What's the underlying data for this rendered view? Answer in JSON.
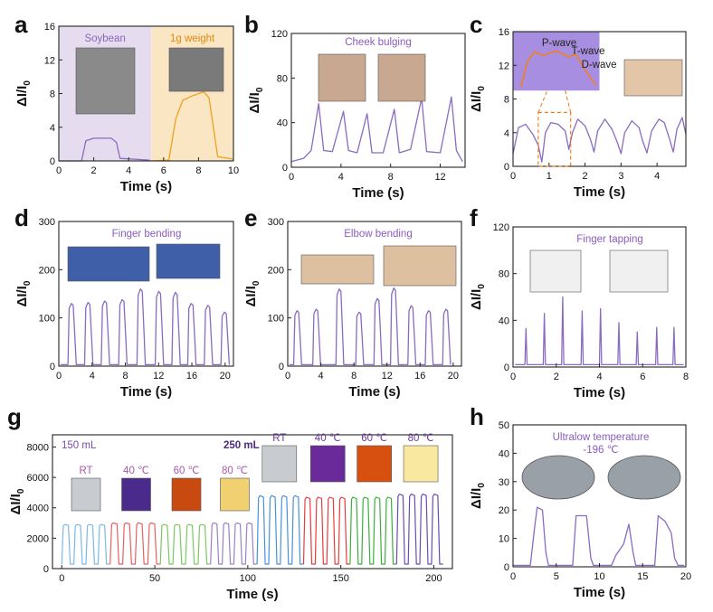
{
  "panel_labels": [
    "a",
    "b",
    "c",
    "d",
    "e",
    "f",
    "g",
    "h"
  ],
  "chart_data": [
    {
      "panel": "a",
      "type": "line",
      "xlabel": "Time (s)",
      "ylabel": "ΔI/I0",
      "xlim": [
        0,
        10
      ],
      "ylim": [
        0,
        16
      ],
      "xticks": [
        0,
        2,
        4,
        6,
        8,
        10
      ],
      "yticks": [
        0,
        4,
        8,
        12,
        16
      ],
      "regions": [
        {
          "label": "Soybean",
          "x": [
            0,
            5.3
          ],
          "color": "#e6dcf0",
          "text_color": "#8a66b8"
        },
        {
          "label": "1g weight",
          "x": [
            5.3,
            10
          ],
          "color": "#fbe6c4",
          "text_color": "#e08a10"
        }
      ],
      "series": [
        {
          "color": "#8a6bc0",
          "points": [
            [
              0,
              0
            ],
            [
              1.3,
              0
            ],
            [
              1.55,
              2.4
            ],
            [
              2.0,
              2.7
            ],
            [
              3.0,
              2.7
            ],
            [
              3.3,
              2.2
            ],
            [
              3.5,
              0.3
            ],
            [
              5.2,
              0.1
            ]
          ]
        },
        {
          "color": "#f0a020",
          "points": [
            [
              5.3,
              0
            ],
            [
              6.3,
              0.1
            ],
            [
              6.7,
              5.0
            ],
            [
              7.1,
              7.2
            ],
            [
              7.6,
              7.7
            ],
            [
              8.3,
              8.2
            ],
            [
              8.6,
              7.5
            ],
            [
              9.1,
              0.5
            ],
            [
              10,
              0.2
            ]
          ]
        }
      ]
    },
    {
      "panel": "b",
      "type": "line",
      "xlabel": "Time (s)",
      "ylabel": "ΔI/I0",
      "xlim": [
        0,
        14
      ],
      "ylim": [
        0,
        120
      ],
      "xticks": [
        0,
        4,
        8,
        12
      ],
      "yticks": [
        0,
        40,
        80,
        120
      ],
      "title": "Cheek bulging",
      "series": [
        {
          "color": "#8a6bc0",
          "points": [
            [
              0,
              5
            ],
            [
              1.0,
              8
            ],
            [
              1.6,
              15
            ],
            [
              2.2,
              57
            ],
            [
              2.6,
              15
            ],
            [
              3.3,
              14
            ],
            [
              4.2,
              50
            ],
            [
              4.6,
              15
            ],
            [
              5.3,
              13
            ],
            [
              6.1,
              48
            ],
            [
              6.5,
              13
            ],
            [
              7.4,
              13
            ],
            [
              8.3,
              52
            ],
            [
              8.7,
              13
            ],
            [
              9.6,
              16
            ],
            [
              10.5,
              62
            ],
            [
              10.9,
              14
            ],
            [
              12.0,
              13
            ],
            [
              12.9,
              63
            ],
            [
              13.3,
              15
            ],
            [
              13.8,
              5
            ]
          ]
        }
      ]
    },
    {
      "panel": "c",
      "type": "line",
      "xlabel": "Time (s)",
      "ylabel": "ΔI/I0",
      "xlim": [
        0,
        4.8
      ],
      "ylim": [
        0,
        16
      ],
      "xticks": [
        0,
        1,
        2,
        3,
        4
      ],
      "yticks": [
        0,
        4,
        8,
        12,
        16
      ],
      "annotations": [
        "P-wave",
        "T-wave",
        "D-wave"
      ],
      "series": [
        {
          "color": "#8a6bc0",
          "points": [
            [
              0,
              1.5
            ],
            [
              0.15,
              4.6
            ],
            [
              0.35,
              5.0
            ],
            [
              0.55,
              3.8
            ],
            [
              0.7,
              2.5
            ],
            [
              0.8,
              0.5
            ],
            [
              0.9,
              4.0
            ],
            [
              1.05,
              5.2
            ],
            [
              1.25,
              5.0
            ],
            [
              1.45,
              4.2
            ],
            [
              1.55,
              2.0
            ],
            [
              1.65,
              4.0
            ],
            [
              1.8,
              5.6
            ],
            [
              2.0,
              4.8
            ],
            [
              2.15,
              3.2
            ],
            [
              2.25,
              1.7
            ],
            [
              2.35,
              4.2
            ],
            [
              2.55,
              5.6
            ],
            [
              2.75,
              4.4
            ],
            [
              2.9,
              2.8
            ],
            [
              3.0,
              1.5
            ],
            [
              3.1,
              4.0
            ],
            [
              3.3,
              5.4
            ],
            [
              3.5,
              4.6
            ],
            [
              3.6,
              3.0
            ],
            [
              3.72,
              1.6
            ],
            [
              3.85,
              4.2
            ],
            [
              4.05,
              5.6
            ],
            [
              4.2,
              5.2
            ],
            [
              4.35,
              3.2
            ],
            [
              4.45,
              1.7
            ],
            [
              4.55,
              4.4
            ],
            [
              4.7,
              5.8
            ],
            [
              4.8,
              3.8
            ]
          ]
        }
      ]
    },
    {
      "panel": "d",
      "type": "line",
      "xlabel": "Time (s)",
      "ylabel": "ΔI/I0",
      "xlim": [
        0,
        21
      ],
      "ylim": [
        0,
        300
      ],
      "xticks": [
        0,
        4,
        8,
        12,
        16,
        20
      ],
      "yticks": [
        0,
        100,
        200,
        300
      ],
      "title": "Finger bending",
      "pulses": {
        "color": "#8a6bc0",
        "baseline": 3,
        "width": 0.9,
        "centers": [
          1.6,
          3.6,
          5.6,
          7.7,
          9.9,
          12.1,
          14.1,
          16.0,
          18.0,
          20.0
        ],
        "peaks": [
          130,
          132,
          135,
          138,
          160,
          155,
          153,
          130,
          126,
          112
        ]
      }
    },
    {
      "panel": "e",
      "type": "line",
      "xlabel": "Time (s)",
      "ylabel": "ΔI/I0",
      "xlim": [
        0,
        21
      ],
      "ylim": [
        0,
        300
      ],
      "xticks": [
        0,
        4,
        8,
        12,
        16,
        20
      ],
      "yticks": [
        0,
        100,
        200,
        300
      ],
      "title": "Elbow bending",
      "pulses": {
        "color": "#8a6bc0",
        "baseline": 3,
        "width": 0.85,
        "centers": [
          1.2,
          3.5,
          6.3,
          8.7,
          10.9,
          12.9,
          15.0,
          17.1,
          19.2
        ],
        "peaks": [
          115,
          118,
          160,
          112,
          140,
          162,
          125,
          115,
          118
        ]
      }
    },
    {
      "panel": "f",
      "type": "line",
      "xlabel": "Time (s)",
      "ylabel": "ΔI/I0",
      "xlim": [
        0,
        8
      ],
      "ylim": [
        0,
        120
      ],
      "xticks": [
        0,
        2,
        4,
        6,
        8
      ],
      "yticks": [
        0,
        40,
        80,
        120
      ],
      "title": "Finger tapping",
      "spikes": {
        "color": "#8a6bc0",
        "baseline": 2,
        "width": 0.1,
        "centers": [
          0.6,
          1.45,
          2.3,
          3.2,
          4.05,
          4.9,
          5.75,
          6.65,
          7.45
        ],
        "peaks": [
          33,
          46,
          60,
          48,
          50,
          38,
          30,
          34,
          34
        ]
      }
    },
    {
      "panel": "g",
      "type": "line",
      "xlabel": "Time (s)",
      "ylabel": "ΔI/I0",
      "xlim": [
        -5,
        210
      ],
      "ylim": [
        0,
        8800
      ],
      "xticks": [
        0,
        50,
        100,
        150,
        200
      ],
      "yticks": [
        0,
        2000,
        4000,
        6000,
        8000
      ],
      "groups": [
        "150 mL",
        "250 mL"
      ],
      "conditions": [
        "RT",
        "40 ℃",
        "60 ℃",
        "80 ℃",
        "RT",
        "40 ℃",
        "60 ℃",
        "80 ℃"
      ],
      "series": [
        {
          "condition": "RT",
          "color": "#7ab8e8",
          "start": 0,
          "end": 26,
          "baseline": 300,
          "high": 2900,
          "cycles": 4
        },
        {
          "condition": "40 ℃",
          "color": "#e86060",
          "start": 26,
          "end": 53,
          "baseline": 300,
          "high": 3000,
          "cycles": 4
        },
        {
          "condition": "60 ℃",
          "color": "#7cc860",
          "start": 53,
          "end": 80,
          "baseline": 300,
          "high": 2900,
          "cycles": 4
        },
        {
          "condition": "80 ℃",
          "color": "#9a80c8",
          "start": 80,
          "end": 105,
          "baseline": 300,
          "high": 3000,
          "cycles": 4
        },
        {
          "condition": "RT",
          "color": "#4a90d8",
          "start": 105,
          "end": 130,
          "baseline": 300,
          "high": 4800,
          "cycles": 4
        },
        {
          "condition": "40 ℃",
          "color": "#e83c3c",
          "start": 130,
          "end": 155,
          "baseline": 300,
          "high": 4700,
          "cycles": 4
        },
        {
          "condition": "60 ℃",
          "color": "#3cae3c",
          "start": 155,
          "end": 180,
          "baseline": 300,
          "high": 4700,
          "cycles": 4
        },
        {
          "condition": "80 ℃",
          "color": "#6a4cb0",
          "start": 180,
          "end": 205,
          "baseline": 300,
          "high": 4900,
          "cycles": 4
        }
      ]
    },
    {
      "panel": "h",
      "type": "line",
      "xlabel": "Time (s)",
      "ylabel": "ΔI/I0",
      "xlim": [
        0,
        20
      ],
      "ylim": [
        0,
        50
      ],
      "xticks": [
        0,
        5,
        10,
        15,
        20
      ],
      "yticks": [
        0,
        10,
        20,
        30,
        40,
        50
      ],
      "title": "Ultralow temperature",
      "subtitle": "-196 ℃",
      "series": [
        {
          "color": "#8a6bc0",
          "points": [
            [
              0,
              0.5
            ],
            [
              2.0,
              0.5
            ],
            [
              2.5,
              14
            ],
            [
              2.8,
              21
            ],
            [
              3.4,
              20
            ],
            [
              3.8,
              5
            ],
            [
              4.1,
              0.5
            ],
            [
              6.9,
              0.5
            ],
            [
              7.3,
              18
            ],
            [
              8.5,
              18
            ],
            [
              9.0,
              3
            ],
            [
              9.3,
              0.5
            ],
            [
              11.4,
              0.5
            ],
            [
              11.9,
              4
            ],
            [
              12.8,
              8
            ],
            [
              13.4,
              15
            ],
            [
              13.9,
              5
            ],
            [
              14.2,
              0.5
            ],
            [
              16.4,
              0.5
            ],
            [
              16.8,
              18
            ],
            [
              17.6,
              16
            ],
            [
              18.3,
              12
            ],
            [
              18.7,
              3
            ],
            [
              19.1,
              0.5
            ],
            [
              19.8,
              0.5
            ]
          ]
        }
      ]
    }
  ]
}
